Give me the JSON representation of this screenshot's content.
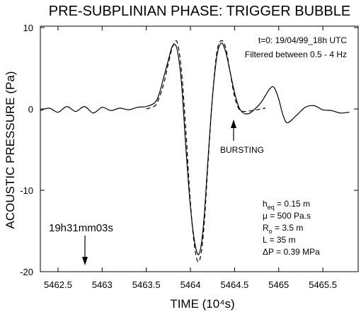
{
  "chart_data": {
    "type": "line",
    "title": "PRE-SUBPLINIAN PHASE: TRIGGER BUBBLE",
    "xlabel": "TIME (10⁴s)",
    "ylabel": "ACOUSTIC PRESSURE (Pa)",
    "xlim": [
      5462.3,
      5465.9
    ],
    "ylim": [
      -20,
      10
    ],
    "x_ticks": [
      5462.5,
      5463,
      5463.5,
      5464,
      5464.5,
      5465,
      5465.5
    ],
    "x_tick_labels": [
      "5462.5",
      "5463",
      "5463.5",
      "5464",
      "5464.5",
      "5465",
      "5465.5"
    ],
    "y_ticks": [
      10,
      0,
      -10,
      -20
    ],
    "y_tick_labels": [
      "10",
      "0",
      "-10",
      "-20"
    ],
    "grid": false,
    "series": [
      {
        "style": "solid",
        "x": [
          5462.3,
          5462.4,
          5462.5,
          5462.6,
          5462.7,
          5462.8,
          5462.9,
          5463.0,
          5463.1,
          5463.2,
          5463.3,
          5463.4,
          5463.5,
          5463.6,
          5463.65,
          5463.7,
          5463.75,
          5463.8,
          5463.85,
          5463.9,
          5463.95,
          5464.0,
          5464.05,
          5464.1,
          5464.15,
          5464.2,
          5464.25,
          5464.3,
          5464.35,
          5464.4,
          5464.45,
          5464.5,
          5464.55,
          5464.6,
          5464.65,
          5464.7,
          5464.8,
          5464.9,
          5464.95,
          5465.0,
          5465.05,
          5465.1,
          5465.2,
          5465.3,
          5465.4,
          5465.5,
          5465.6,
          5465.7,
          5465.8
        ],
        "y": [
          -0.2,
          0.1,
          -0.4,
          0.3,
          -0.3,
          0.3,
          -0.5,
          0.2,
          -0.2,
          0.1,
          -0.1,
          0.2,
          0.3,
          0.8,
          2.0,
          4.0,
          6.0,
          7.8,
          7.3,
          3.0,
          -5.0,
          -12.0,
          -16.5,
          -17.8,
          -14.0,
          -6.0,
          1.5,
          6.5,
          8.1,
          7.0,
          4.5,
          2.0,
          0.2,
          -0.5,
          -0.6,
          -0.3,
          0.8,
          2.5,
          2.6,
          1.2,
          -0.8,
          -1.7,
          -0.8,
          0.2,
          0.4,
          -0.1,
          -0.2,
          -0.5,
          -0.4
        ]
      },
      {
        "style": "dashed",
        "x": [
          5463.5,
          5463.6,
          5463.65,
          5463.7,
          5463.75,
          5463.8,
          5463.85,
          5463.9,
          5463.95,
          5464.0,
          5464.05,
          5464.1,
          5464.15,
          5464.2,
          5464.25,
          5464.3,
          5464.35,
          5464.4,
          5464.45,
          5464.5,
          5464.55,
          5464.6,
          5464.7,
          5464.8,
          5464.85
        ],
        "y": [
          0.0,
          0.4,
          1.5,
          3.2,
          5.6,
          7.7,
          8.2,
          4.5,
          -3.0,
          -11.5,
          -17.2,
          -18.7,
          -15.0,
          -6.5,
          1.5,
          7.0,
          8.4,
          7.5,
          4.5,
          1.5,
          0.0,
          -0.3,
          -0.2,
          0.0,
          0.1
        ]
      }
    ],
    "annotations": {
      "time_origin": "t=0: 19/04/99_18h UTC",
      "filter": "Filtered between 0.5 - 4 Hz",
      "bursting_label": "BURSTING",
      "start_time_label": "19h31mm03s",
      "parameters": [
        {
          "sym": "h",
          "sub": "eq",
          "text": " = 0.15 m"
        },
        {
          "sym": "μ",
          "sub": "",
          "text": " = 500 Pa.s"
        },
        {
          "sym": "R",
          "sub": "o",
          "text": " = 3.5 m"
        },
        {
          "sym": "L",
          "sub": "",
          "text": " = 35 m"
        },
        {
          "sym": "ΔP",
          "sub": "",
          "text": " = 0.39  MPa"
        }
      ]
    }
  }
}
